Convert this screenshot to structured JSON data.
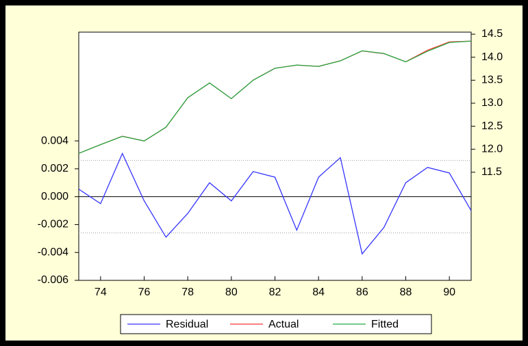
{
  "chart_data": {
    "type": "line",
    "x": [
      73,
      74,
      75,
      76,
      77,
      78,
      79,
      80,
      81,
      82,
      83,
      84,
      85,
      86,
      87,
      88,
      89,
      90,
      91
    ],
    "series": [
      {
        "name": "Residual",
        "color": "#3333ff",
        "axis": "y",
        "values": [
          0.00054,
          -0.0005,
          0.0031,
          -0.0003,
          -0.0029,
          -0.0012,
          0.001,
          -0.0003,
          0.0018,
          0.0014,
          -0.0024,
          0.0014,
          0.0028,
          -0.0041,
          -0.0022,
          0.001,
          0.0021,
          0.0017,
          -0.001
        ]
      },
      {
        "name": "Actual",
        "color": "#ff3333",
        "axis": "y2",
        "values": [
          11.91,
          12.1,
          12.283,
          12.18,
          12.477,
          13.119,
          13.441,
          13.1,
          13.502,
          13.761,
          13.828,
          13.801,
          13.923,
          14.136,
          14.078,
          13.901,
          14.152,
          14.332,
          14.349
        ]
      },
      {
        "name": "Fitted",
        "color": "#22aa44",
        "axis": "y2",
        "values": [
          11.91,
          12.1,
          12.28,
          12.18,
          12.48,
          13.12,
          13.44,
          13.1,
          13.5,
          13.76,
          13.83,
          13.8,
          13.92,
          14.14,
          14.08,
          13.9,
          14.13,
          14.32,
          14.35
        ]
      }
    ],
    "xlim": [
      73,
      91
    ],
    "xticks": [
      74,
      76,
      78,
      80,
      82,
      84,
      86,
      88,
      90
    ],
    "ylim": [
      -0.006,
      0.0118
    ],
    "yticks": [
      {
        "value": -0.006,
        "label": "-0.006"
      },
      {
        "value": -0.004,
        "label": "-0.004"
      },
      {
        "value": -0.002,
        "label": "-0.002"
      },
      {
        "value": 0,
        "label": "0.000"
      },
      {
        "value": 0.002,
        "label": "0.002"
      },
      {
        "value": 0.004,
        "label": "0.004"
      }
    ],
    "y2lim": [
      9.15,
      14.545
    ],
    "y2ticks": [
      {
        "value": 11.5,
        "label": "11.5"
      },
      {
        "value": 12,
        "label": "12.0"
      },
      {
        "value": 12.5,
        "label": "12.5"
      },
      {
        "value": 13,
        "label": "13.0"
      },
      {
        "value": 13.5,
        "label": "13.5"
      },
      {
        "value": 14,
        "label": "14.0"
      },
      {
        "value": 14.5,
        "label": "14.5"
      }
    ],
    "std_error_bands": [
      -0.0026,
      0.0026
    ],
    "legend": "bottom"
  }
}
